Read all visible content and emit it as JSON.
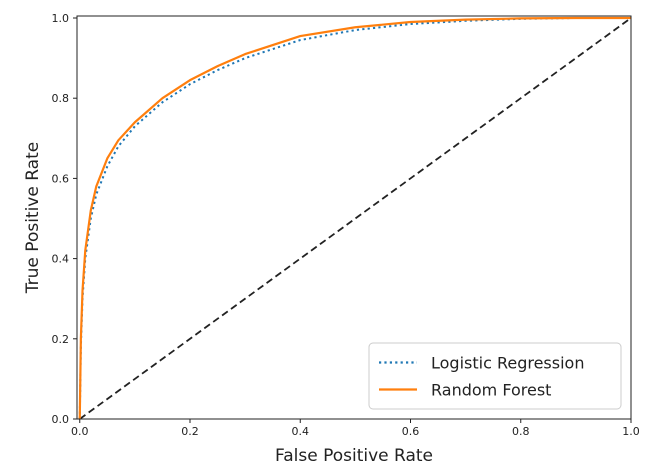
{
  "chart_data": {
    "type": "line",
    "title": "",
    "xlabel": "False Positive Rate",
    "ylabel": "True Positive Rate",
    "xlim": [
      -0.005,
      1.0
    ],
    "ylim": [
      0.0,
      1.005
    ],
    "x_ticks": [
      "0.0",
      "0.2",
      "0.4",
      "0.6",
      "0.8",
      "1.0"
    ],
    "y_ticks": [
      "0.0",
      "0.2",
      "0.4",
      "0.6",
      "0.8",
      "1.0"
    ],
    "grid": false,
    "legend_position": "bottom-right",
    "series": [
      {
        "name": "Logistic Regression",
        "color": "#1f77b4",
        "style": "dotted",
        "x": [
          0,
          0.002,
          0.005,
          0.01,
          0.02,
          0.03,
          0.05,
          0.07,
          0.1,
          0.15,
          0.2,
          0.25,
          0.3,
          0.4,
          0.5,
          0.6,
          0.7,
          0.8,
          0.9,
          1.0
        ],
        "y": [
          0,
          0.18,
          0.3,
          0.4,
          0.5,
          0.56,
          0.63,
          0.68,
          0.73,
          0.79,
          0.835,
          0.87,
          0.9,
          0.945,
          0.97,
          0.985,
          0.993,
          0.998,
          1.0,
          1.0
        ]
      },
      {
        "name": "Random Forest",
        "color": "#ff7f0e",
        "style": "solid",
        "x": [
          0,
          0.002,
          0.005,
          0.01,
          0.02,
          0.03,
          0.05,
          0.07,
          0.1,
          0.15,
          0.2,
          0.25,
          0.3,
          0.4,
          0.5,
          0.6,
          0.7,
          0.8,
          0.9,
          1.0
        ],
        "y": [
          0,
          0.2,
          0.32,
          0.42,
          0.52,
          0.58,
          0.65,
          0.695,
          0.74,
          0.8,
          0.845,
          0.88,
          0.91,
          0.955,
          0.977,
          0.99,
          0.996,
          0.999,
          1.0,
          1.0
        ]
      },
      {
        "color": "#222222",
        "style": "dashed",
        "x": [
          0,
          1
        ],
        "y": [
          0,
          1
        ]
      }
    ]
  }
}
